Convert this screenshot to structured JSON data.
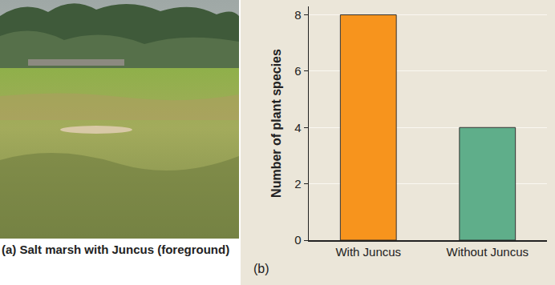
{
  "chart_data": {
    "type": "bar",
    "categories": [
      "With Juncus",
      "Without Juncus"
    ],
    "values": [
      8,
      4
    ],
    "colors": [
      "#f7941d",
      "#5fae8a"
    ],
    "y_label": "Number of plant species",
    "ylim": [
      0,
      8.3
    ],
    "yticks": [
      0,
      2,
      4,
      6,
      8
    ],
    "grid": true,
    "annotations": [
      "(b)"
    ]
  },
  "photo": {
    "caption": "(a) Salt marsh with Juncus (foreground)"
  }
}
